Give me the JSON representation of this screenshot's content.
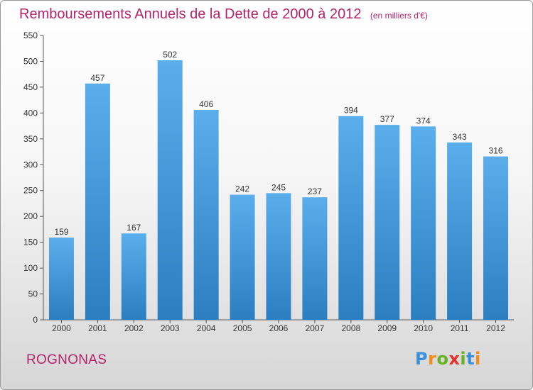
{
  "header": {
    "title": "Remboursements Annuels de la Dette de 2000 à 2012",
    "unit": "(en milliers d'€)"
  },
  "footer": {
    "town": "ROGNONAS",
    "logo": {
      "letters": [
        "P",
        "r",
        "o",
        "x",
        "i",
        "t",
        "i"
      ],
      "colors": [
        "#3a8fd8",
        "#f28c1c",
        "#6ab023",
        "#e2322b",
        "#6ab023",
        "#3a8fd8",
        "#f28c1c"
      ]
    }
  },
  "colors": {
    "bar_light": "#5aaeeb",
    "bar_dark": "#2b7fc1",
    "title": "#b3246b"
  },
  "chart_data": {
    "type": "bar",
    "title": "Remboursements Annuels de la Dette de 2000 à 2012",
    "subtitle": "(en milliers d'€)",
    "categories": [
      "2000",
      "2001",
      "2002",
      "2003",
      "2004",
      "2005",
      "2006",
      "2007",
      "2008",
      "2009",
      "2010",
      "2011",
      "2012"
    ],
    "values": [
      159,
      457,
      167,
      502,
      406,
      242,
      245,
      237,
      394,
      377,
      374,
      343,
      316
    ],
    "ylim": [
      0,
      550
    ],
    "yticks": [
      0,
      50,
      100,
      150,
      200,
      250,
      300,
      350,
      400,
      450,
      500,
      550
    ],
    "grid": false,
    "data_labels": true
  }
}
